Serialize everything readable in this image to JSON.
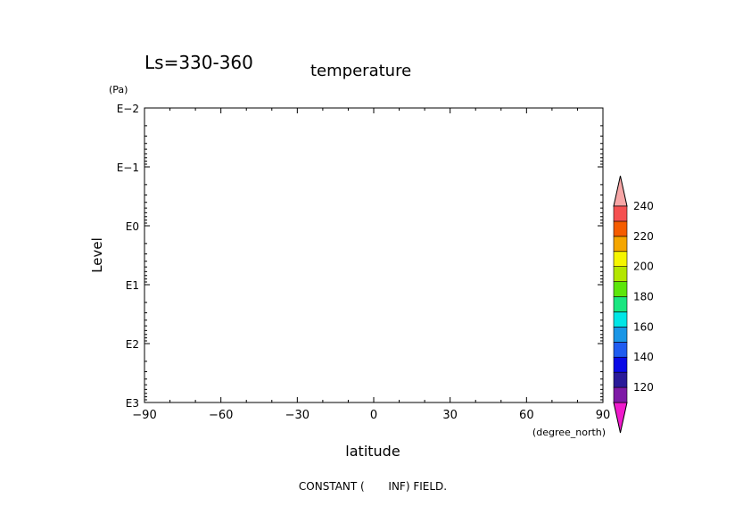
{
  "chart_data": {
    "type": "heatmap",
    "title_left": "Ls=330-360",
    "title_right": "temperature",
    "ylabel": "Level",
    "yunit": "(Pa)",
    "xlabel": "latitude",
    "xunit": "(degree_north)",
    "note": "CONSTANT (       INF) FIELD.",
    "x_ticks": [
      {
        "value": -90,
        "label": "−90"
      },
      {
        "value": -60,
        "label": "−60"
      },
      {
        "value": -30,
        "label": "−30"
      },
      {
        "value": 0,
        "label": "0"
      },
      {
        "value": 30,
        "label": "30"
      },
      {
        "value": 60,
        "label": "60"
      },
      {
        "value": 90,
        "label": "90"
      }
    ],
    "xlim": [
      -90,
      90
    ],
    "y_log_scale": true,
    "y_inverted": true,
    "y_ticks": [
      {
        "exp": -2,
        "label": "E−2"
      },
      {
        "exp": -1,
        "label": "E−1"
      },
      {
        "exp": 0,
        "label": "E0"
      },
      {
        "exp": 1,
        "label": "E1"
      },
      {
        "exp": 2,
        "label": "E2"
      },
      {
        "exp": 3,
        "label": "E3"
      }
    ],
    "ylim_exp": [
      -2,
      3
    ],
    "colorbar": {
      "levels": [
        110,
        120,
        130,
        140,
        150,
        160,
        170,
        180,
        190,
        200,
        210,
        220,
        230,
        240
      ],
      "colors": [
        "#7e1aa6",
        "#2a1a99",
        "#0a0ae6",
        "#1f5cf0",
        "#1a96e6",
        "#00e6e6",
        "#1ae680",
        "#5ce60a",
        "#b3e600",
        "#f5f500",
        "#f5a600",
        "#f55c00",
        "#f55050"
      ],
      "under_color": "#f01acc",
      "over_color": "#f7a6a6",
      "labels": [
        "120",
        "140",
        "160",
        "180",
        "200",
        "220",
        "240"
      ]
    }
  }
}
